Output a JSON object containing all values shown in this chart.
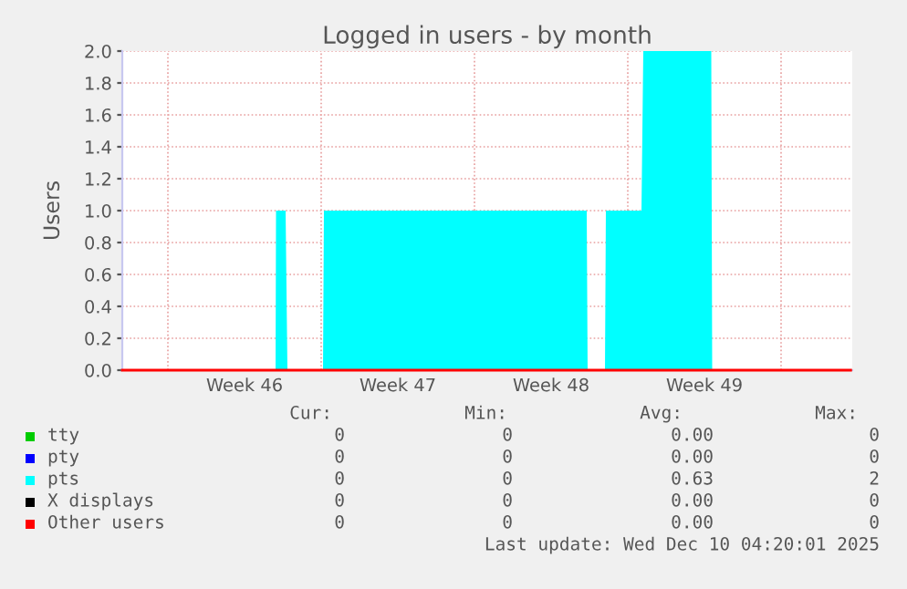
{
  "chart_data": {
    "type": "area",
    "title": "Logged in users - by month",
    "ylabel": "Users",
    "xlim": [
      "2025-11-06T22:00",
      "2025-12-10T06:00"
    ],
    "ylim": [
      0,
      2.0
    ],
    "xticks": [
      {
        "value": "2025-11-09",
        "label": null
      },
      {
        "value": "2025-11-12T12:00",
        "label": "Week 46"
      },
      {
        "value": "2025-11-16",
        "label": null
      },
      {
        "value": "2025-11-19T12:00",
        "label": "Week 47"
      },
      {
        "value": "2025-11-23",
        "label": null
      },
      {
        "value": "2025-11-26T12:00",
        "label": "Week 48"
      },
      {
        "value": "2025-11-30",
        "label": null
      },
      {
        "value": "2025-12-03T12:00",
        "label": "Week 49"
      },
      {
        "value": "2025-12-07",
        "label": null
      }
    ],
    "yticks": [
      {
        "value": 0,
        "label": "0.0"
      },
      {
        "value": 0.2,
        "label": "0.2"
      },
      {
        "value": 0.4,
        "label": "0.4"
      },
      {
        "value": 0.6,
        "label": "0.6"
      },
      {
        "value": 0.8,
        "label": "0.8"
      },
      {
        "value": 1.0,
        "label": "1.0"
      },
      {
        "value": 1.2,
        "label": "1.2"
      },
      {
        "value": 1.4,
        "label": "1.4"
      },
      {
        "value": 1.6,
        "label": "1.6"
      },
      {
        "value": 1.8,
        "label": "1.8"
      },
      {
        "value": 2.0,
        "label": "2.0"
      }
    ],
    "grid": true,
    "legend": "bottom left",
    "series": [
      {
        "name": "tty",
        "color": "#00cc00",
        "type": "line"
      },
      {
        "name": "pty",
        "color": "#0000ff",
        "type": "line"
      },
      {
        "name": "pts",
        "color": "#00ffff",
        "x": [
          "2025-11-06T22:00",
          "2025-11-13T22:00",
          "2025-11-13T22:30",
          "2025-11-14T09:00",
          "2025-11-14T11:00",
          "2025-11-16T02:00",
          "2025-11-16T03:00",
          "2025-11-28T03:00",
          "2025-11-28T04:00",
          "2025-11-28T23:00",
          "2025-11-29T00:00",
          "2025-11-30T15:00",
          "2025-11-30T17:00",
          "2025-12-03T19:30",
          "2025-12-03T20:30",
          "2025-12-10T04:20"
        ],
        "values": [
          0,
          0,
          1,
          1,
          0,
          0,
          1,
          1,
          0,
          0,
          1,
          1,
          2,
          2,
          0,
          0
        ]
      },
      {
        "name": "X displays",
        "color": "#000000",
        "type": "line"
      },
      {
        "name": "Other users",
        "color": "#ff0000",
        "type": "line",
        "x": [
          "2025-11-06T22:00",
          "2025-12-10T04:20"
        ],
        "values": [
          0,
          0
        ]
      }
    ],
    "annotations": [
      "Cur:",
      "Min:",
      "Avg:",
      "Max:",
      "0",
      "0",
      "0.00",
      "0",
      "0",
      "0",
      "0.00",
      "0",
      "0",
      "0",
      "0.63",
      "2",
      "0",
      "0",
      "0.00",
      "0",
      "0",
      "0",
      "0.00",
      "0",
      "Last update: Wed Dec 10 04:20:01 2025"
    ]
  }
}
